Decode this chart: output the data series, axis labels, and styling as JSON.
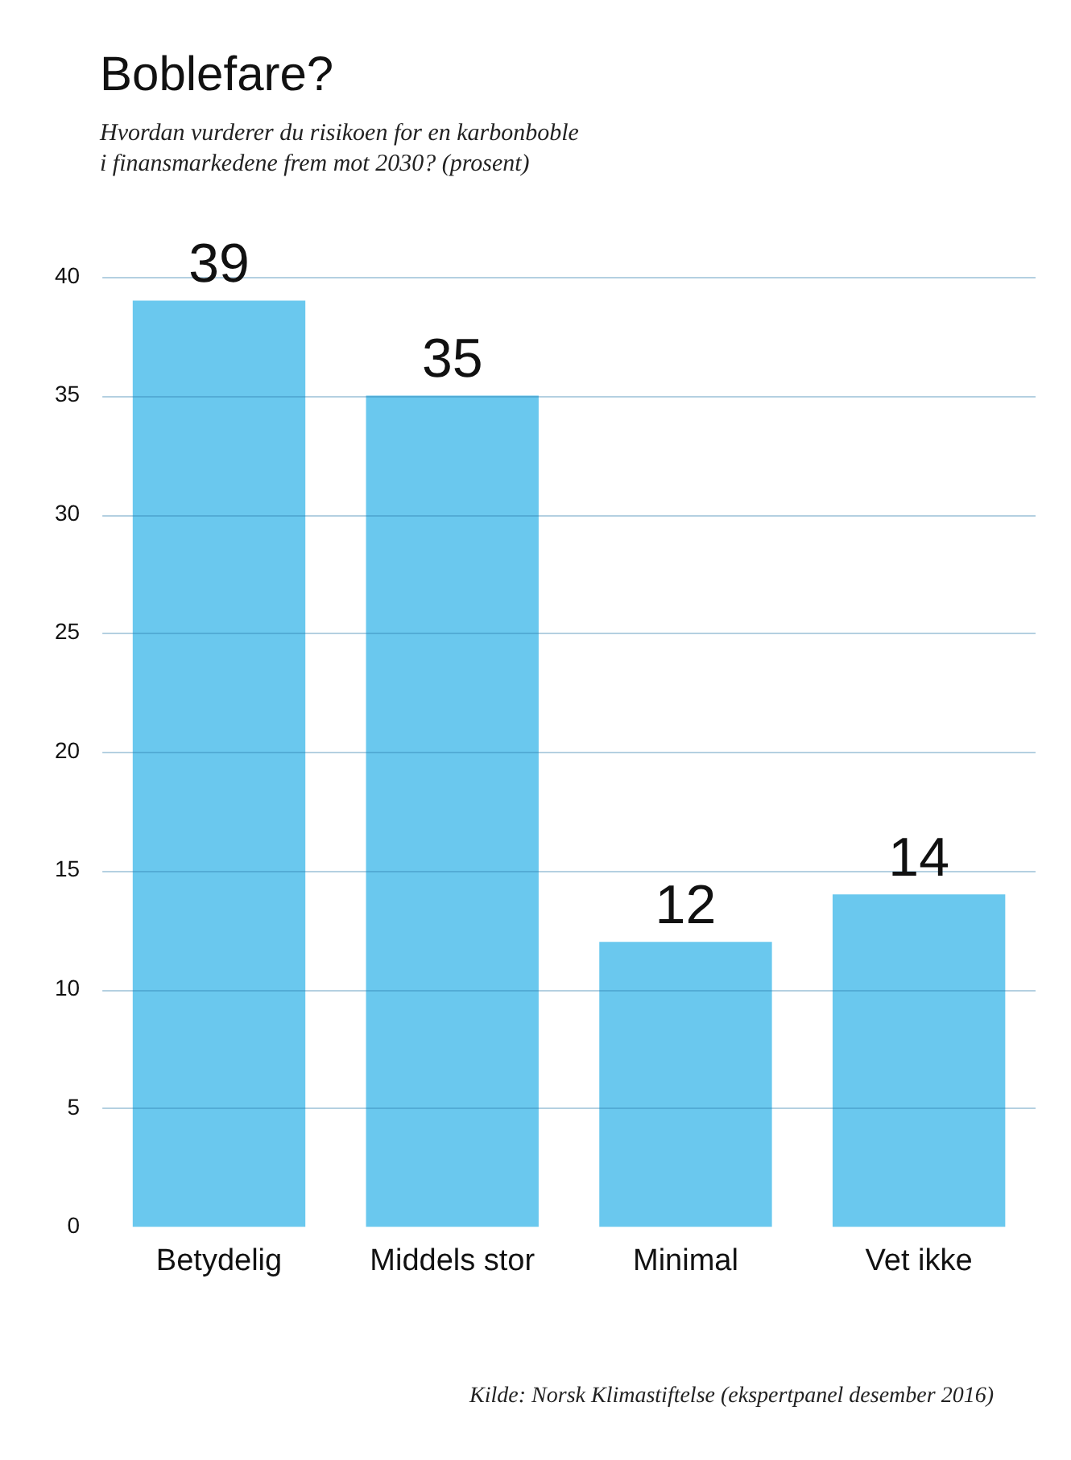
{
  "chart_data": {
    "type": "bar",
    "title": "Boblefare?",
    "subtitle": "Hvordan vurderer du risikoen for en karbonboble\ni finansmarkedene frem mot 2030? (prosent)",
    "categories": [
      "Betydelig",
      "Middels stor",
      "Minimal",
      "Vet ikke"
    ],
    "values": [
      39,
      35,
      12,
      14
    ],
    "color": "#6ac8ee",
    "ylim": [
      0,
      40
    ],
    "yticks": [
      0,
      5,
      10,
      15,
      20,
      25,
      30,
      35,
      40
    ],
    "grid": "y",
    "data_labels": true,
    "annotations": [
      "Kilde: Norsk Klimastiftelse (ekspertpanel desember 2016)"
    ]
  }
}
